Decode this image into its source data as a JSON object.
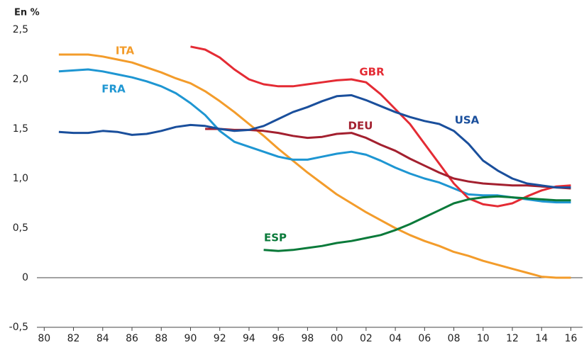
{
  "chart_data": {
    "type": "line",
    "title": "En %",
    "x": [
      1981,
      1982,
      1983,
      1984,
      1985,
      1986,
      1987,
      1988,
      1989,
      1990,
      1991,
      1992,
      1993,
      1994,
      1995,
      1996,
      1997,
      1998,
      1999,
      2000,
      2001,
      2002,
      2003,
      2004,
      2005,
      2006,
      2007,
      2008,
      2009,
      2010,
      2011,
      2012,
      2013,
      2014,
      2015,
      2016
    ],
    "series": [
      {
        "name": "ITA",
        "color": "#f39c2b",
        "values": [
          2.25,
          2.25,
          2.25,
          2.23,
          2.2,
          2.17,
          2.12,
          2.07,
          2.01,
          1.96,
          1.88,
          1.78,
          1.67,
          1.55,
          1.43,
          1.3,
          1.18,
          1.06,
          0.95,
          0.84,
          0.75,
          0.66,
          0.58,
          0.5,
          0.43,
          0.37,
          0.32,
          0.26,
          0.22,
          0.17,
          0.13,
          0.09,
          0.05,
          0.01,
          0,
          0
        ]
      },
      {
        "name": "FRA",
        "color": "#1e96d2",
        "values": [
          2.08,
          2.09,
          2.1,
          2.08,
          2.05,
          2.02,
          1.98,
          1.93,
          1.86,
          1.76,
          1.64,
          1.48,
          1.37,
          1.32,
          1.27,
          1.22,
          1.19,
          1.19,
          1.22,
          1.25,
          1.27,
          1.24,
          1.18,
          1.11,
          1.05,
          1.0,
          0.96,
          0.9,
          0.84,
          0.83,
          0.83,
          0.81,
          0.79,
          0.77,
          0.76,
          0.76
        ]
      },
      {
        "name": "GBR",
        "color": "#e42b34",
        "values": [
          null,
          null,
          null,
          null,
          null,
          null,
          null,
          null,
          null,
          2.33,
          2.3,
          2.22,
          2.1,
          2.0,
          1.95,
          1.93,
          1.93,
          1.95,
          1.97,
          1.99,
          2.0,
          1.97,
          1.85,
          1.7,
          1.55,
          1.35,
          1.15,
          0.95,
          0.8,
          0.74,
          0.72,
          0.75,
          0.82,
          0.88,
          0.92,
          0.93
        ]
      },
      {
        "name": "DEU",
        "color": "#a3202f",
        "values": [
          null,
          null,
          null,
          null,
          null,
          null,
          null,
          null,
          null,
          null,
          1.5,
          1.5,
          1.49,
          1.49,
          1.48,
          1.46,
          1.43,
          1.41,
          1.42,
          1.45,
          1.46,
          1.41,
          1.34,
          1.28,
          1.2,
          1.13,
          1.06,
          1.0,
          0.97,
          0.95,
          0.94,
          0.93,
          0.93,
          0.92,
          0.91,
          0.9
        ]
      },
      {
        "name": "USA",
        "color": "#1a4f9c",
        "values": [
          1.47,
          1.46,
          1.46,
          1.48,
          1.47,
          1.44,
          1.45,
          1.48,
          1.52,
          1.54,
          1.53,
          1.5,
          1.48,
          1.49,
          1.53,
          1.6,
          1.67,
          1.72,
          1.78,
          1.83,
          1.84,
          1.79,
          1.73,
          1.67,
          1.62,
          1.58,
          1.55,
          1.48,
          1.35,
          1.18,
          1.08,
          1.0,
          0.95,
          0.93,
          0.91,
          0.91
        ]
      },
      {
        "name": "ESP",
        "color": "#0a7a3a",
        "values": [
          null,
          null,
          null,
          null,
          null,
          null,
          null,
          null,
          null,
          null,
          null,
          null,
          null,
          null,
          0.28,
          0.27,
          0.28,
          0.3,
          0.32,
          0.35,
          0.37,
          0.4,
          0.43,
          0.48,
          0.54,
          0.61,
          0.68,
          0.75,
          0.79,
          0.81,
          0.82,
          0.81,
          0.8,
          0.79,
          0.78,
          0.78
        ]
      }
    ],
    "xlim": [
      1979.5,
      2016.8
    ],
    "xticks": [
      {
        "value": 1980,
        "label": "80"
      },
      {
        "value": 1982,
        "label": "82"
      },
      {
        "value": 1984,
        "label": "84"
      },
      {
        "value": 1986,
        "label": "86"
      },
      {
        "value": 1988,
        "label": "88"
      },
      {
        "value": 1990,
        "label": "90"
      },
      {
        "value": 1992,
        "label": "92"
      },
      {
        "value": 1994,
        "label": "94"
      },
      {
        "value": 1996,
        "label": "96"
      },
      {
        "value": 1998,
        "label": "98"
      },
      {
        "value": 2000,
        "label": "00"
      },
      {
        "value": 2002,
        "label": "02"
      },
      {
        "value": 2004,
        "label": "04"
      },
      {
        "value": 2006,
        "label": "06"
      },
      {
        "value": 2008,
        "label": "08"
      },
      {
        "value": 2010,
        "label": "10"
      },
      {
        "value": 2012,
        "label": "12"
      },
      {
        "value": 2014,
        "label": "14"
      },
      {
        "value": 2016,
        "label": "16"
      }
    ],
    "ylim": [
      -0.5,
      2.5
    ],
    "yticks": [
      {
        "value": -0.5,
        "label": "-0,5"
      },
      0,
      {
        "value": 0.5,
        "label": "0,5"
      },
      {
        "value": 1,
        "label": "1,0"
      },
      {
        "value": 1.5,
        "label": "1,5"
      },
      {
        "value": 2,
        "label": "2,0"
      },
      {
        "value": 2.5,
        "label": "2,5"
      }
    ]
  }
}
